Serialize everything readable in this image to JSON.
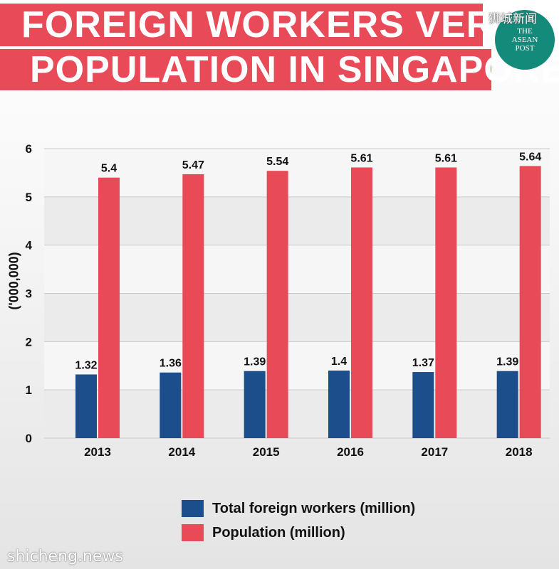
{
  "title": {
    "line1": "FOREIGN WORKERS VERSUS",
    "line2": "POPULATION IN SINGAPORE"
  },
  "logo": {
    "chinese": "狮城新闻",
    "line1": "THE",
    "line2": "ASEAN",
    "line3": "POST"
  },
  "watermark": "shicheng.news",
  "colors": {
    "title_band": "#e84a57",
    "workers": "#1c4e8b",
    "population": "#e84a57",
    "logo": "#138a7a"
  },
  "chart_data": {
    "type": "bar",
    "categories": [
      "2013",
      "2014",
      "2015",
      "2016",
      "2017",
      "2018"
    ],
    "series": [
      {
        "name": "Total foreign workers (million)",
        "values": [
          1.32,
          1.36,
          1.39,
          1.4,
          1.37,
          1.39
        ],
        "labels": [
          "1.32",
          "1.36",
          "1.39",
          "1.4",
          "1.37",
          "1.39"
        ]
      },
      {
        "name": "Population (million)",
        "values": [
          5.4,
          5.47,
          5.54,
          5.61,
          5.61,
          5.64
        ],
        "labels": [
          "5.4",
          "5.47",
          "5.54",
          "5.61",
          "5.61",
          "5.64"
        ]
      }
    ],
    "ylabel": "('000,000)",
    "xlabel": "",
    "ylim": [
      0,
      6
    ],
    "yticks": [
      "0",
      "1",
      "2",
      "3",
      "4",
      "5",
      "6"
    ],
    "grid": true,
    "legend": "bottom"
  }
}
